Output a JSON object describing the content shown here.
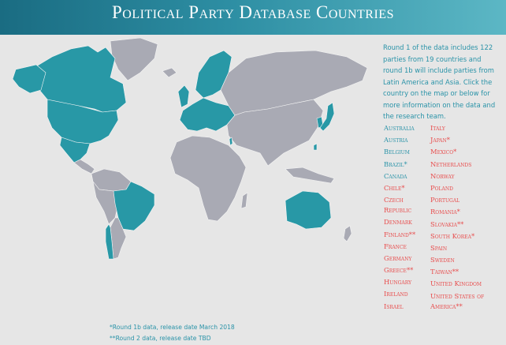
{
  "title": "Political Party Database Countries",
  "intro": "Round 1 of the data includes 122 parties from 19 countries and round 1b will include parties from Latin America and Asia. Click the country on the map or below for more information on the data and the research team.",
  "colors": {
    "round1": "#2a93a8",
    "round1b_round2": "#e84b4b",
    "map_highlight": "#2898a6",
    "map_other": "#a9aab4"
  },
  "countries_col1": [
    {
      "name": "Australia",
      "color": "teal"
    },
    {
      "name": "Austria",
      "color": "teal"
    },
    {
      "name": "Belgium",
      "color": "teal"
    },
    {
      "name": "Brazil*",
      "color": "teal"
    },
    {
      "name": "Canada",
      "color": "teal"
    },
    {
      "name": "Chile*",
      "color": "red"
    },
    {
      "name": "Czech Republic",
      "color": "red"
    },
    {
      "name": "Denmark",
      "color": "red"
    },
    {
      "name": "Finland**",
      "color": "red"
    },
    {
      "name": "France",
      "color": "red"
    },
    {
      "name": "Germany",
      "color": "red"
    },
    {
      "name": "Greece**",
      "color": "red"
    },
    {
      "name": "Hungary",
      "color": "red"
    },
    {
      "name": "Ireland",
      "color": "red"
    },
    {
      "name": "Israel",
      "color": "red"
    }
  ],
  "countries_col2": [
    {
      "name": "Italy",
      "color": "red"
    },
    {
      "name": "Japan*",
      "color": "red"
    },
    {
      "name": "Mexico*",
      "color": "red"
    },
    {
      "name": "Netherlands",
      "color": "red"
    },
    {
      "name": "Norway",
      "color": "red"
    },
    {
      "name": "Poland",
      "color": "red"
    },
    {
      "name": "Portugal",
      "color": "red"
    },
    {
      "name": "Romania*",
      "color": "red"
    },
    {
      "name": "Slovakia**",
      "color": "red"
    },
    {
      "name": "South Korea*",
      "color": "red"
    },
    {
      "name": "Spain",
      "color": "red"
    },
    {
      "name": "Sweden",
      "color": "red"
    },
    {
      "name": "Taiwan**",
      "color": "red"
    },
    {
      "name": "United Kingdom",
      "color": "red"
    },
    {
      "name": "United States of America**",
      "color": "red"
    }
  ],
  "footnotes": {
    "round1b": "*Round 1b data, release date March 2018",
    "round2": "**Round 2 data, release date TBD"
  }
}
